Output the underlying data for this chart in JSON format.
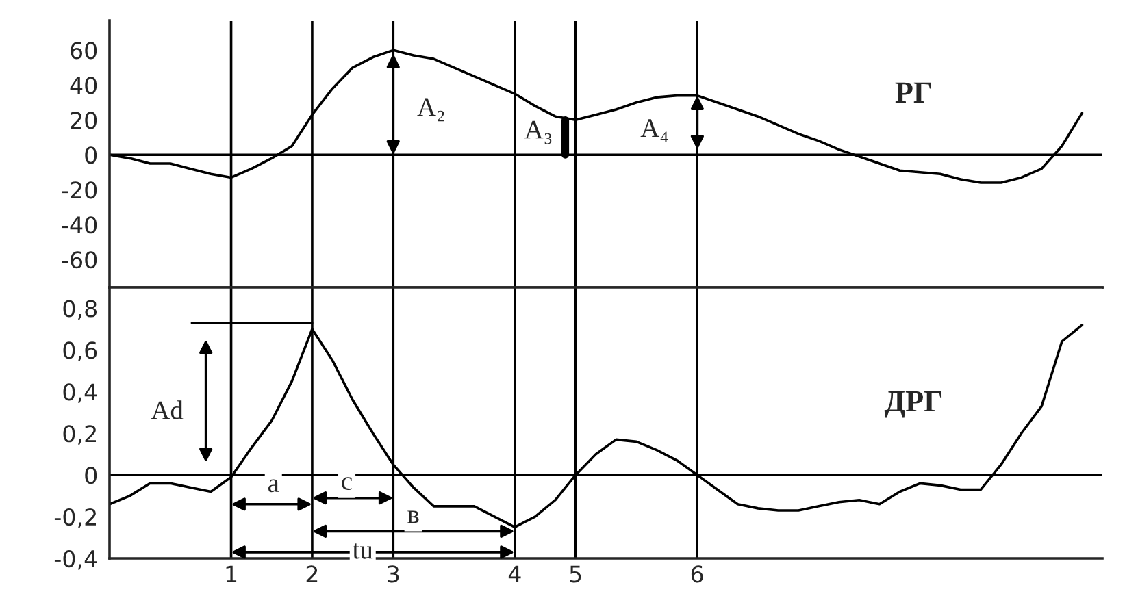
{
  "chart_data": [
    {
      "type": "line",
      "title": "РГ",
      "categories": [
        null,
        null,
        null,
        null,
        null,
        null,
        "1",
        null,
        null,
        null,
        "2",
        null,
        null,
        null,
        "3",
        null,
        null,
        null,
        null,
        null,
        "4",
        null,
        null,
        "5",
        null,
        null,
        null,
        null,
        null,
        "6",
        null,
        null,
        null,
        null,
        null,
        null,
        null,
        null,
        null,
        null,
        null,
        null,
        null,
        null,
        null,
        null,
        null,
        null,
        null
      ],
      "ylim": [
        -76,
        77
      ],
      "yticks": [
        60,
        40,
        20,
        0,
        -20,
        -40,
        -60
      ],
      "tick_labels": "y",
      "grid": "x",
      "series": [
        {
          "color": "#000000",
          "values": [
            0,
            -2,
            -5,
            -5,
            -8,
            -11,
            -13,
            -8,
            -2,
            5,
            23,
            38,
            50,
            56,
            60,
            57,
            55,
            50,
            45,
            40,
            35,
            28,
            22,
            20,
            23,
            26,
            30,
            33,
            34,
            34,
            30,
            26,
            22,
            17,
            12,
            8,
            3,
            -1,
            -5,
            -9,
            -10,
            -11,
            -14,
            -16,
            -16,
            -13,
            -8,
            5,
            24
          ]
        }
      ],
      "ref_lines": [
        {
          "axis": "y",
          "value": 0
        }
      ],
      "annotations": [
        "A₂",
        "A₃",
        "A₄"
      ]
    },
    {
      "type": "line",
      "title": "ДРГ",
      "categories": [
        null,
        null,
        null,
        null,
        null,
        null,
        "1",
        null,
        null,
        null,
        "2",
        null,
        null,
        null,
        "3",
        null,
        null,
        null,
        null,
        null,
        "4",
        null,
        null,
        "5",
        null,
        null,
        null,
        null,
        null,
        "6",
        null,
        null,
        null,
        null,
        null,
        null,
        null,
        null,
        null,
        null,
        null,
        null,
        null,
        null,
        null,
        null,
        null,
        null,
        null
      ],
      "ylim": [
        -0.4,
        0.9
      ],
      "grid": "x",
      "yticks": [
        {
          "value": 0.8,
          "label": "0,8"
        },
        {
          "value": 0.6,
          "label": "0,6"
        },
        {
          "value": 0.4,
          "label": "0,4"
        },
        {
          "value": 0.2,
          "label": "0,2"
        },
        0,
        {
          "value": -0.2,
          "label": "-0,2"
        },
        {
          "value": -0.4,
          "label": "-0,4"
        }
      ],
      "series": [
        {
          "color": "#000000",
          "values": [
            -0.14,
            -0.1,
            -0.04,
            -0.04,
            -0.06,
            -0.08,
            -0.01,
            0.13,
            0.26,
            0.45,
            0.7,
            0.55,
            0.36,
            0.2,
            0.05,
            -0.06,
            -0.15,
            -0.15,
            -0.15,
            -0.2,
            -0.25,
            -0.2,
            -0.12,
            0,
            0.1,
            0.17,
            0.16,
            0.12,
            0.07,
            0,
            -0.07,
            -0.14,
            -0.16,
            -0.17,
            -0.17,
            -0.15,
            -0.13,
            -0.12,
            -0.14,
            -0.08,
            -0.04,
            -0.05,
            -0.07,
            -0.07,
            0.05,
            0.2,
            0.33,
            0.64,
            0.72
          ]
        }
      ],
      "ref_lines": [
        {
          "axis": "y",
          "value": 0
        }
      ],
      "annotations": [
        "Ad",
        "a",
        "c",
        "в",
        "tu"
      ]
    }
  ]
}
